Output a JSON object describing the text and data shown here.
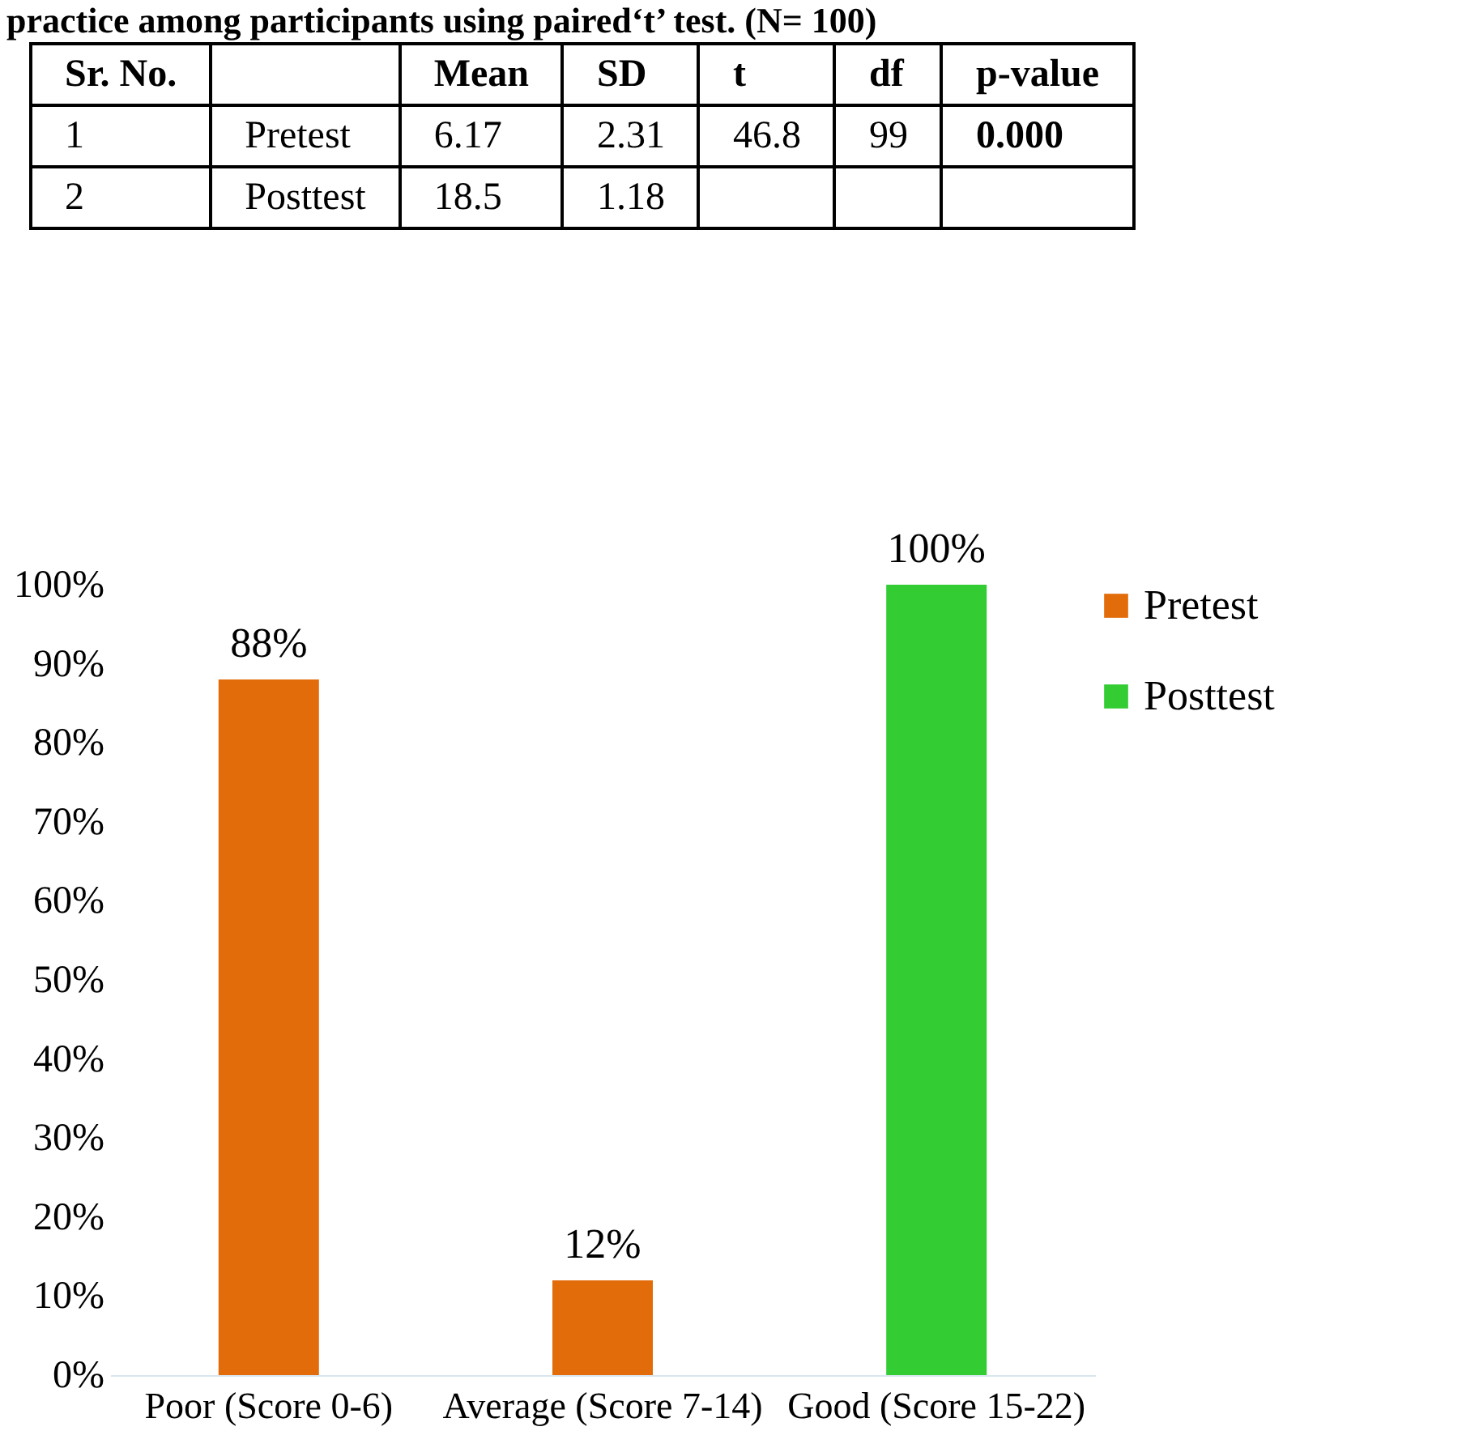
{
  "chart_data": [
    {
      "type": "other",
      "title": "practice among participants using paired‘t’ test. (N= 100)",
      "annotations": [
        "Sr. No.",
        null,
        "Mean",
        "SD",
        "t",
        "df",
        "p-value",
        "1",
        "Pretest",
        "6.17",
        "2.31",
        "46.8",
        "99",
        "0.000",
        "2",
        "Posttest",
        "18.5",
        "1.18",
        null,
        null,
        null
      ]
    },
    {
      "type": "bar",
      "categories": [
        "Poor (Score 0-6)",
        "Average (Score 7-14)",
        "Good (Score 15-22)"
      ],
      "series": [
        {
          "name": "Pretest",
          "color": "#e36c0a",
          "values": [
            88,
            12,
            0
          ],
          "value_labels": [
            "88%",
            "12%",
            null
          ]
        },
        {
          "name": "Posttest",
          "color": "#33cc33",
          "values": [
            0,
            0,
            100
          ],
          "value_labels": [
            null,
            null,
            "100%"
          ]
        }
      ],
      "ylim": [
        0,
        100
      ],
      "yticks": [
        {
          "value": 0,
          "label": "0%"
        },
        {
          "value": 10,
          "label": "10%"
        },
        {
          "value": 20,
          "label": "20%"
        },
        {
          "value": 30,
          "label": "30%"
        },
        {
          "value": 40,
          "label": "40%"
        },
        {
          "value": 50,
          "label": "50%"
        },
        {
          "value": 60,
          "label": "60%"
        },
        {
          "value": 70,
          "label": "70%"
        },
        {
          "value": 80,
          "label": "80%"
        },
        {
          "value": 90,
          "label": "90%"
        },
        {
          "value": 100,
          "label": "100%"
        }
      ],
      "legend": "right"
    }
  ]
}
